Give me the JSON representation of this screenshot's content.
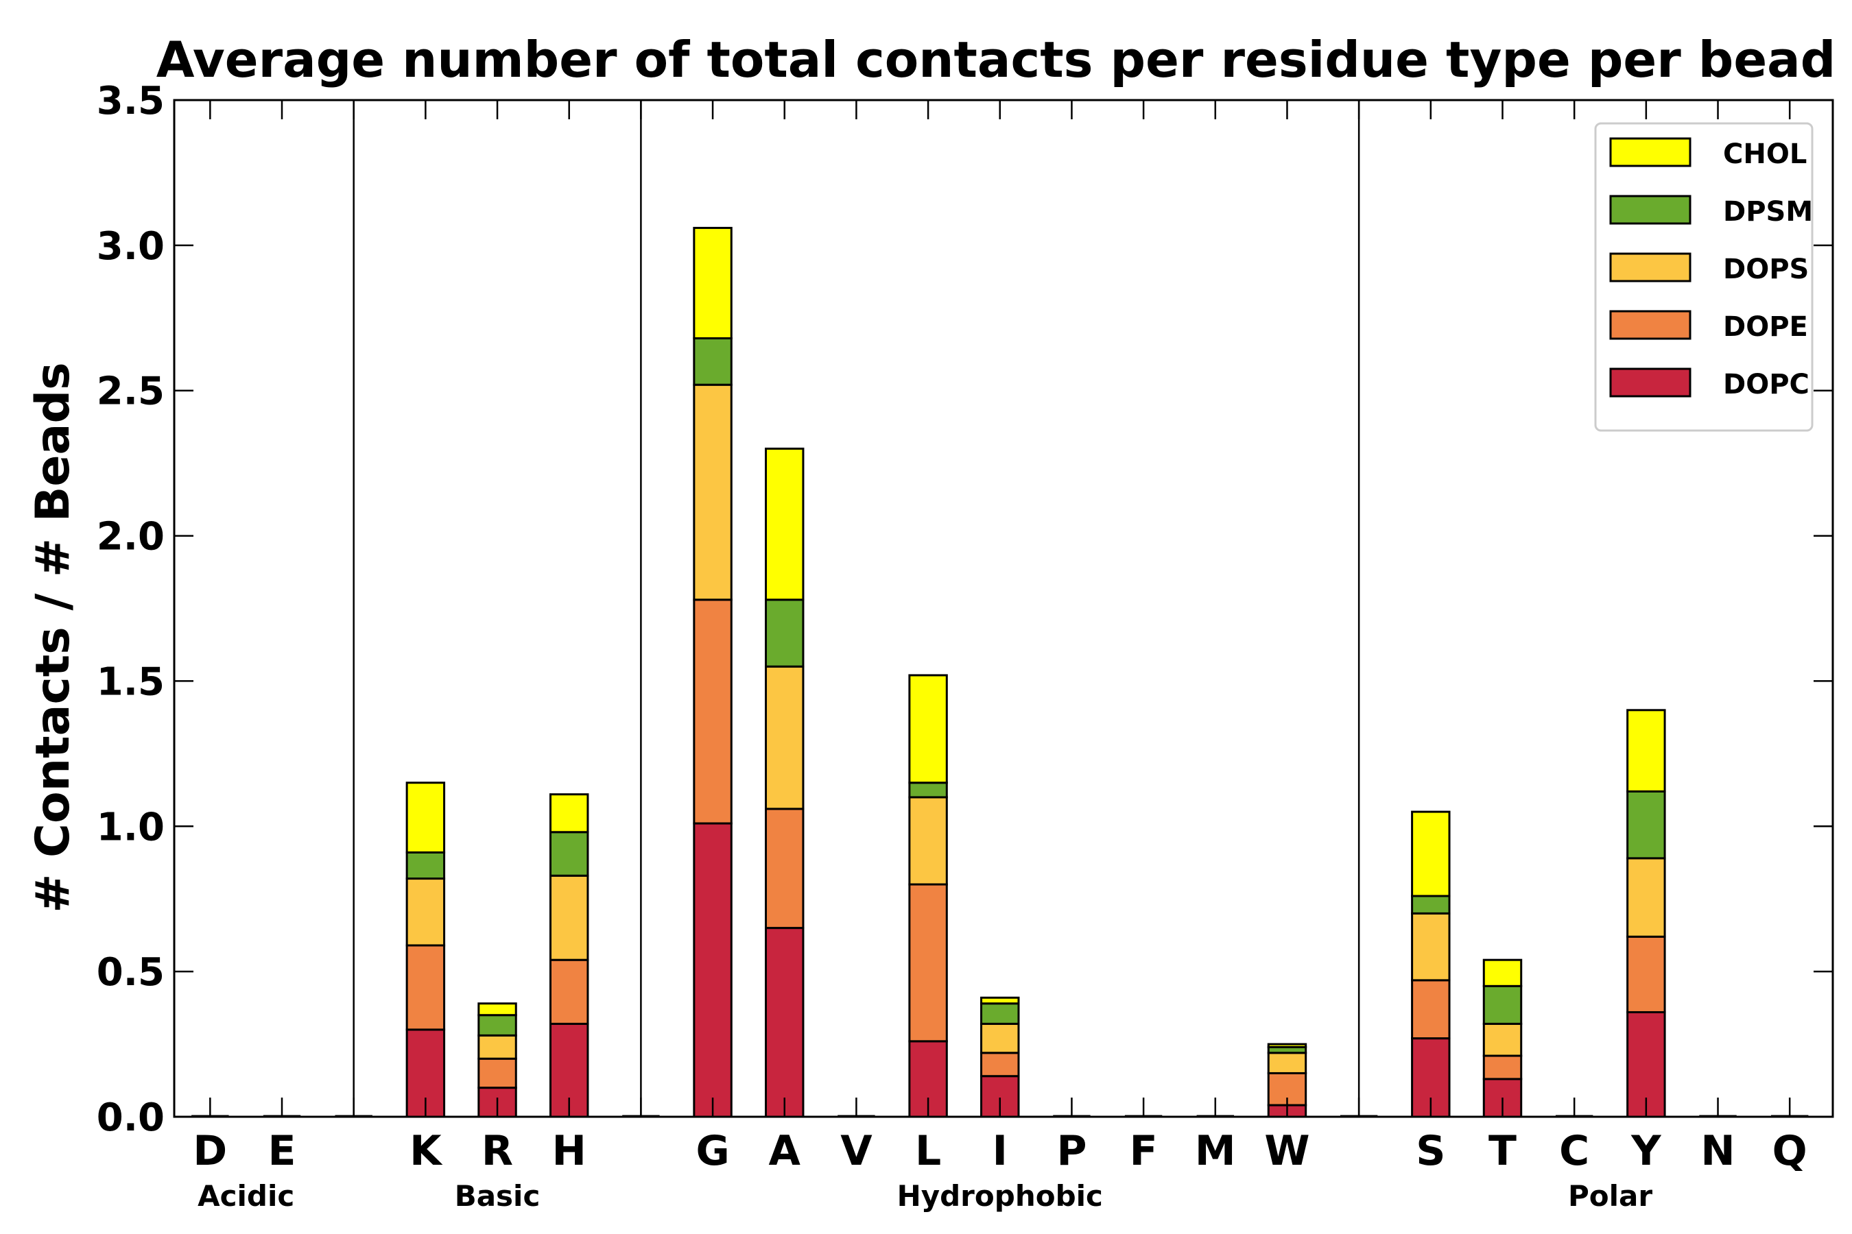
{
  "chart_data": {
    "type": "bar",
    "stacked": true,
    "title": "Average number of total contacts per residue type per bead",
    "ylabel": "# Contacts / # Beads",
    "xlabel": "",
    "ylim": [
      0,
      3.5
    ],
    "yticks": [
      "0.0",
      "0.5",
      "1.0",
      "1.5",
      "2.0",
      "2.5",
      "3.0",
      "3.5"
    ],
    "grid": false,
    "legend_position": "top-right",
    "categories": [
      "D",
      "E",
      "K",
      "R",
      "H",
      "G",
      "A",
      "V",
      "L",
      "I",
      "P",
      "F",
      "M",
      "W",
      "S",
      "T",
      "C",
      "Y",
      "N",
      "Q"
    ],
    "groups": [
      {
        "label": "Acidic",
        "categories": [
          "D",
          "E"
        ]
      },
      {
        "label": "Basic",
        "categories": [
          "K",
          "R",
          "H"
        ]
      },
      {
        "label": "Hydrophobic",
        "categories": [
          "G",
          "A",
          "V",
          "L",
          "I",
          "P",
          "F",
          "M",
          "W"
        ]
      },
      {
        "label": "Polar",
        "categories": [
          "S",
          "T",
          "C",
          "Y",
          "N",
          "Q"
        ]
      }
    ],
    "series": [
      {
        "name": "DOPC",
        "color": "#c8253e",
        "values": [
          0,
          0,
          0.3,
          0.1,
          0.32,
          1.01,
          0.65,
          0,
          0.26,
          0.14,
          0,
          0,
          0,
          0.04,
          0.27,
          0.13,
          0,
          0.36,
          0,
          0
        ]
      },
      {
        "name": "DOPE",
        "color": "#f08342",
        "values": [
          0,
          0,
          0.29,
          0.1,
          0.22,
          0.77,
          0.41,
          0,
          0.54,
          0.08,
          0,
          0,
          0,
          0.11,
          0.2,
          0.08,
          0,
          0.26,
          0,
          0
        ]
      },
      {
        "name": "DOPS",
        "color": "#fcc643",
        "values": [
          0,
          0,
          0.23,
          0.08,
          0.29,
          0.74,
          0.49,
          0,
          0.3,
          0.1,
          0,
          0,
          0,
          0.07,
          0.23,
          0.11,
          0,
          0.27,
          0,
          0
        ]
      },
      {
        "name": "DPSM",
        "color": "#6aab2d",
        "values": [
          0,
          0,
          0.09,
          0.07,
          0.15,
          0.16,
          0.23,
          0,
          0.05,
          0.07,
          0,
          0,
          0,
          0.02,
          0.06,
          0.13,
          0,
          0.23,
          0,
          0
        ]
      },
      {
        "name": "CHOL",
        "color": "#ffff00",
        "values": [
          0,
          0,
          0.24,
          0.04,
          0.13,
          0.38,
          0.52,
          0,
          0.37,
          0.02,
          0,
          0,
          0,
          0.01,
          0.29,
          0.09,
          0,
          0.28,
          0,
          0
        ]
      }
    ]
  }
}
